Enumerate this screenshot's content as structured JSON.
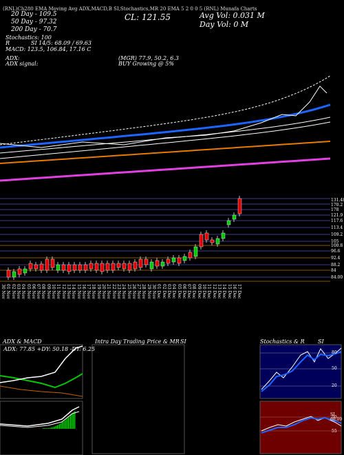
{
  "header": {
    "top_strip": "(RNL)Ch280 EMA Moving Avg ADX,MACD,B  SI,Stochastics,MR  20 EMA 5 2 0 0 5  (RNL) Munafa Charts",
    "ema20": "20   Day   - 109.5",
    "ema50": "50   Day  - 97.32",
    "ema200": "200   Day  - 70.7",
    "cl": "CL: 121.55",
    "avg_vol": "Avg Vol: 0.031  M",
    "day_vol": "Day Vol: 0   M",
    "stochastics": "Stochastics: 100",
    "si": "SI 14/5: 68.09 / 69.63",
    "r": "R",
    "macd": "MACD: 123.5,  106.84,  17.16   C",
    "adx": "ADX:",
    "adx_values": "(MGR) 77.9,  50.2,  6.3",
    "adx_signal": "ADX  signal:",
    "adx_signal_value": "BUY Growing @ 5%"
  },
  "price_axis": [
    "131.48",
    "170.2",
    "178",
    "121.9",
    "117.6",
    "113.4",
    "109.2",
    "105",
    "100.8",
    "96.6",
    "92.4",
    "88.2",
    "84",
    "84.00"
  ],
  "date_labels": [
    "30 Nov",
    "01 Nov",
    "02 Nov",
    "03 Nov",
    "04 Nov",
    "05 Nov",
    "06 Nov",
    "07 Nov",
    "08 Nov",
    "09 Nov",
    "10 Nov",
    "11 Nov",
    "12 Nov",
    "13 Nov",
    "14 Nov",
    "15 Nov",
    "16 Nov",
    "17 Nov",
    "18 Nov",
    "19 Nov",
    "20 Nov",
    "21 Nov",
    "22 Nov",
    "23 Nov",
    "24 Nov",
    "25 Nov",
    "26 Nov",
    "27 Nov",
    "28 Nov",
    "29 Nov",
    "30 Nov",
    "01 Dec",
    "02 Dec",
    "03 Dec",
    "04 Dec",
    "05 Dec",
    "06 Dec",
    "07 Dec",
    "08 Dec",
    "09 Dec",
    "10 Dec",
    "11 Dec",
    "12 Dec",
    "13 Dec",
    "14 Dec",
    "15 Dec",
    "16 Dec",
    "17 Dec"
  ],
  "panels": {
    "adx_macd_title": "ADX  & MACD",
    "adx_readout": "ADX: 77.85  +DY: 50.18  -DY: 6.25",
    "intraday_title": "Intra  Day Trading Price  & MR",
    "si_title": "SI",
    "stoch_title": "Stochastics & R",
    "stoch_si": "SI",
    "stoch_levels": [
      "80",
      "50",
      "20"
    ],
    "si_levels": [
      "50",
      "55"
    ],
    "si_value": "SI 68.09"
  },
  "colors": {
    "up": "#00c800",
    "down": "#e00000",
    "ema_blue": "#1e64ff",
    "ema_orange": "#e87a00",
    "ema_magenta": "#e040e0",
    "stoch_bg": "#00005a",
    "si_bg": "#6e0000"
  }
}
